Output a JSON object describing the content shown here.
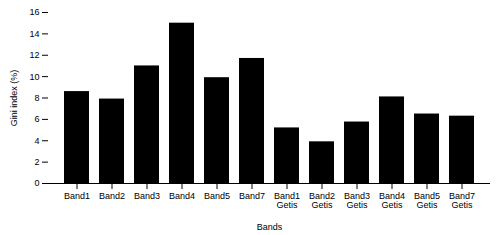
{
  "chart_data": {
    "type": "bar",
    "categories": [
      "Band1",
      "Band2",
      "Band3",
      "Band4",
      "Band5",
      "Band7",
      "Band1\nGetis",
      "Band2\nGetis",
      "Band3\nGetis",
      "Band4\nGetis",
      "Band5\nGetis",
      "Band7\nGetis"
    ],
    "values": [
      8.6,
      7.9,
      11.0,
      15.0,
      9.9,
      11.7,
      5.2,
      3.9,
      5.75,
      8.1,
      6.5,
      6.3
    ],
    "xlabel": "Bands",
    "ylabel": "Gini index (%)",
    "ylim": [
      0,
      16
    ],
    "yticks": [
      0,
      2,
      4,
      6,
      8,
      10,
      12,
      14,
      16
    ]
  }
}
